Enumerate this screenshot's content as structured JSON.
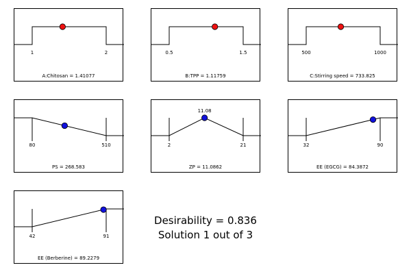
{
  "chart_data": [
    {
      "type": "desirability-ramp",
      "shape": "range",
      "title": "A:Chitosan = 1.41077",
      "tick_labels": [
        "1",
        "2"
      ],
      "low": 1,
      "high": 2,
      "value": 1.41077,
      "desirability_at_value": 1,
      "marker_color": "#ee1111"
    },
    {
      "type": "desirability-ramp",
      "shape": "range",
      "title": "B:TPP = 1.11759",
      "tick_labels": [
        "0.5",
        "1.5"
      ],
      "low": 0.5,
      "high": 1.5,
      "value": 1.11759,
      "desirability_at_value": 1,
      "marker_color": "#ee1111"
    },
    {
      "type": "desirability-ramp",
      "shape": "range",
      "title": "C:Stirring speed = 733.825",
      "tick_labels": [
        "500",
        "1000"
      ],
      "low": 500,
      "high": 1000,
      "value": 733.825,
      "desirability_at_value": 1,
      "marker_color": "#ee1111"
    },
    {
      "type": "desirability-ramp",
      "shape": "minimize",
      "title": "PS = 268.583",
      "tick_labels": [
        "80",
        "510"
      ],
      "low": 80,
      "high": 510,
      "value": 268.583,
      "desirability_at_value": 0.56,
      "marker_color": "#1111dd"
    },
    {
      "type": "desirability-ramp",
      "shape": "target",
      "title": "ZP = 11.0862",
      "tick_labels": [
        "2",
        "21"
      ],
      "target_label": "11.08",
      "low": 2,
      "target": 11.08,
      "high": 21,
      "value": 11.0862,
      "desirability_at_value": 1,
      "marker_color": "#1111dd"
    },
    {
      "type": "desirability-ramp",
      "shape": "maximize",
      "title": "EE (EGCG) = 84.3872",
      "tick_labels": [
        "32",
        "90"
      ],
      "low": 32,
      "high": 90,
      "value": 84.3872,
      "desirability_at_value": 0.9,
      "marker_color": "#1111dd"
    },
    {
      "type": "desirability-ramp",
      "shape": "maximize",
      "title": "EE (Berberine) = 89.2279",
      "tick_labels": [
        "42",
        "91"
      ],
      "low": 42,
      "high": 91,
      "value": 89.2279,
      "desirability_at_value": 0.96,
      "marker_color": "#1111dd"
    }
  ],
  "summary": {
    "desirability": "Desirability = 0.836",
    "solution": "Solution 1 out of 3"
  }
}
